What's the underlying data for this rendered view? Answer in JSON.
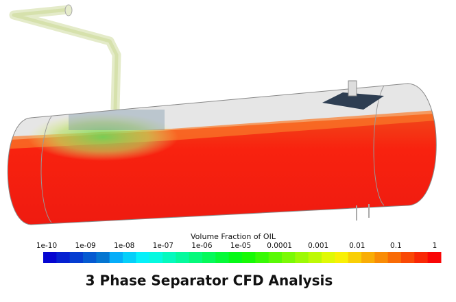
{
  "legend": {
    "title": "Volume Fraction of OIL",
    "ticks": [
      "1e-10",
      "1e-09",
      "1e-08",
      "1e-07",
      "1e-06",
      "1e-05",
      "0.0001",
      "0.001",
      "0.01",
      "0.1",
      "1"
    ]
  },
  "caption": "3 Phase Separator CFD Analysis"
}
